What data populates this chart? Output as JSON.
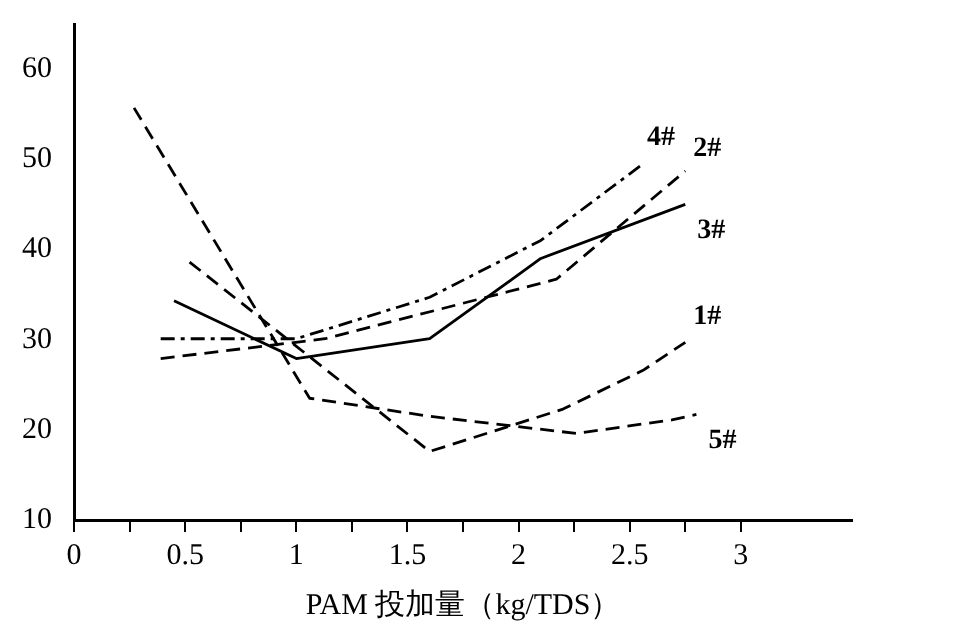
{
  "chart_data": {
    "type": "line",
    "xlabel": "PAM 投加量（kg/TDS）",
    "xlim": [
      0,
      3.5
    ],
    "ylim": [
      10,
      65
    ],
    "xticks": [
      0,
      {
        "value": 0.25,
        "label": null
      },
      0.5,
      {
        "value": 0.75,
        "label": null
      },
      1,
      {
        "value": 1.25,
        "label": null
      },
      1.5,
      {
        "value": 1.75,
        "label": null
      },
      2,
      {
        "value": 2.25,
        "label": null
      },
      2.5,
      {
        "value": 2.75,
        "label": null
      },
      3
    ],
    "yticks": [
      10,
      20,
      30,
      40,
      50,
      60
    ],
    "grid": false,
    "legend": false,
    "marker": "none",
    "series": [
      {
        "name": "1#",
        "color": "#000000",
        "line_style": "dashed",
        "x": [
          0.52,
          1.6,
          2.2,
          2.56,
          2.75
        ],
        "values": [
          38.6,
          17.6,
          22.3,
          26.6,
          29.7
        ]
      },
      {
        "name": "2#",
        "color": "#000000",
        "line_style": "dashed",
        "x": [
          0.39,
          1.13,
          2.17,
          2.75
        ],
        "values": [
          27.9,
          30.1,
          36.7,
          48.7
        ]
      },
      {
        "name": "3#",
        "color": "#000000",
        "line_style": "solid",
        "x": [
          0.45,
          1.0,
          1.6,
          2.1,
          2.75
        ],
        "values": [
          34.3,
          27.9,
          30.1,
          39.0,
          45.0
        ]
      },
      {
        "name": "4#",
        "color": "#000000",
        "line_style": "dotted",
        "x": [
          0.39,
          1.0,
          1.6,
          2.1,
          2.56
        ],
        "values": [
          30.1,
          30.1,
          34.7,
          41.0,
          49.5
        ]
      },
      {
        "name": "5#",
        "color": "#000000",
        "line_style": "dashed",
        "x": [
          0.27,
          1.06,
          1.6,
          2.26,
          2.69,
          2.8
        ],
        "values": [
          55.7,
          23.5,
          21.5,
          19.6,
          21.1,
          21.7
        ]
      }
    ]
  }
}
